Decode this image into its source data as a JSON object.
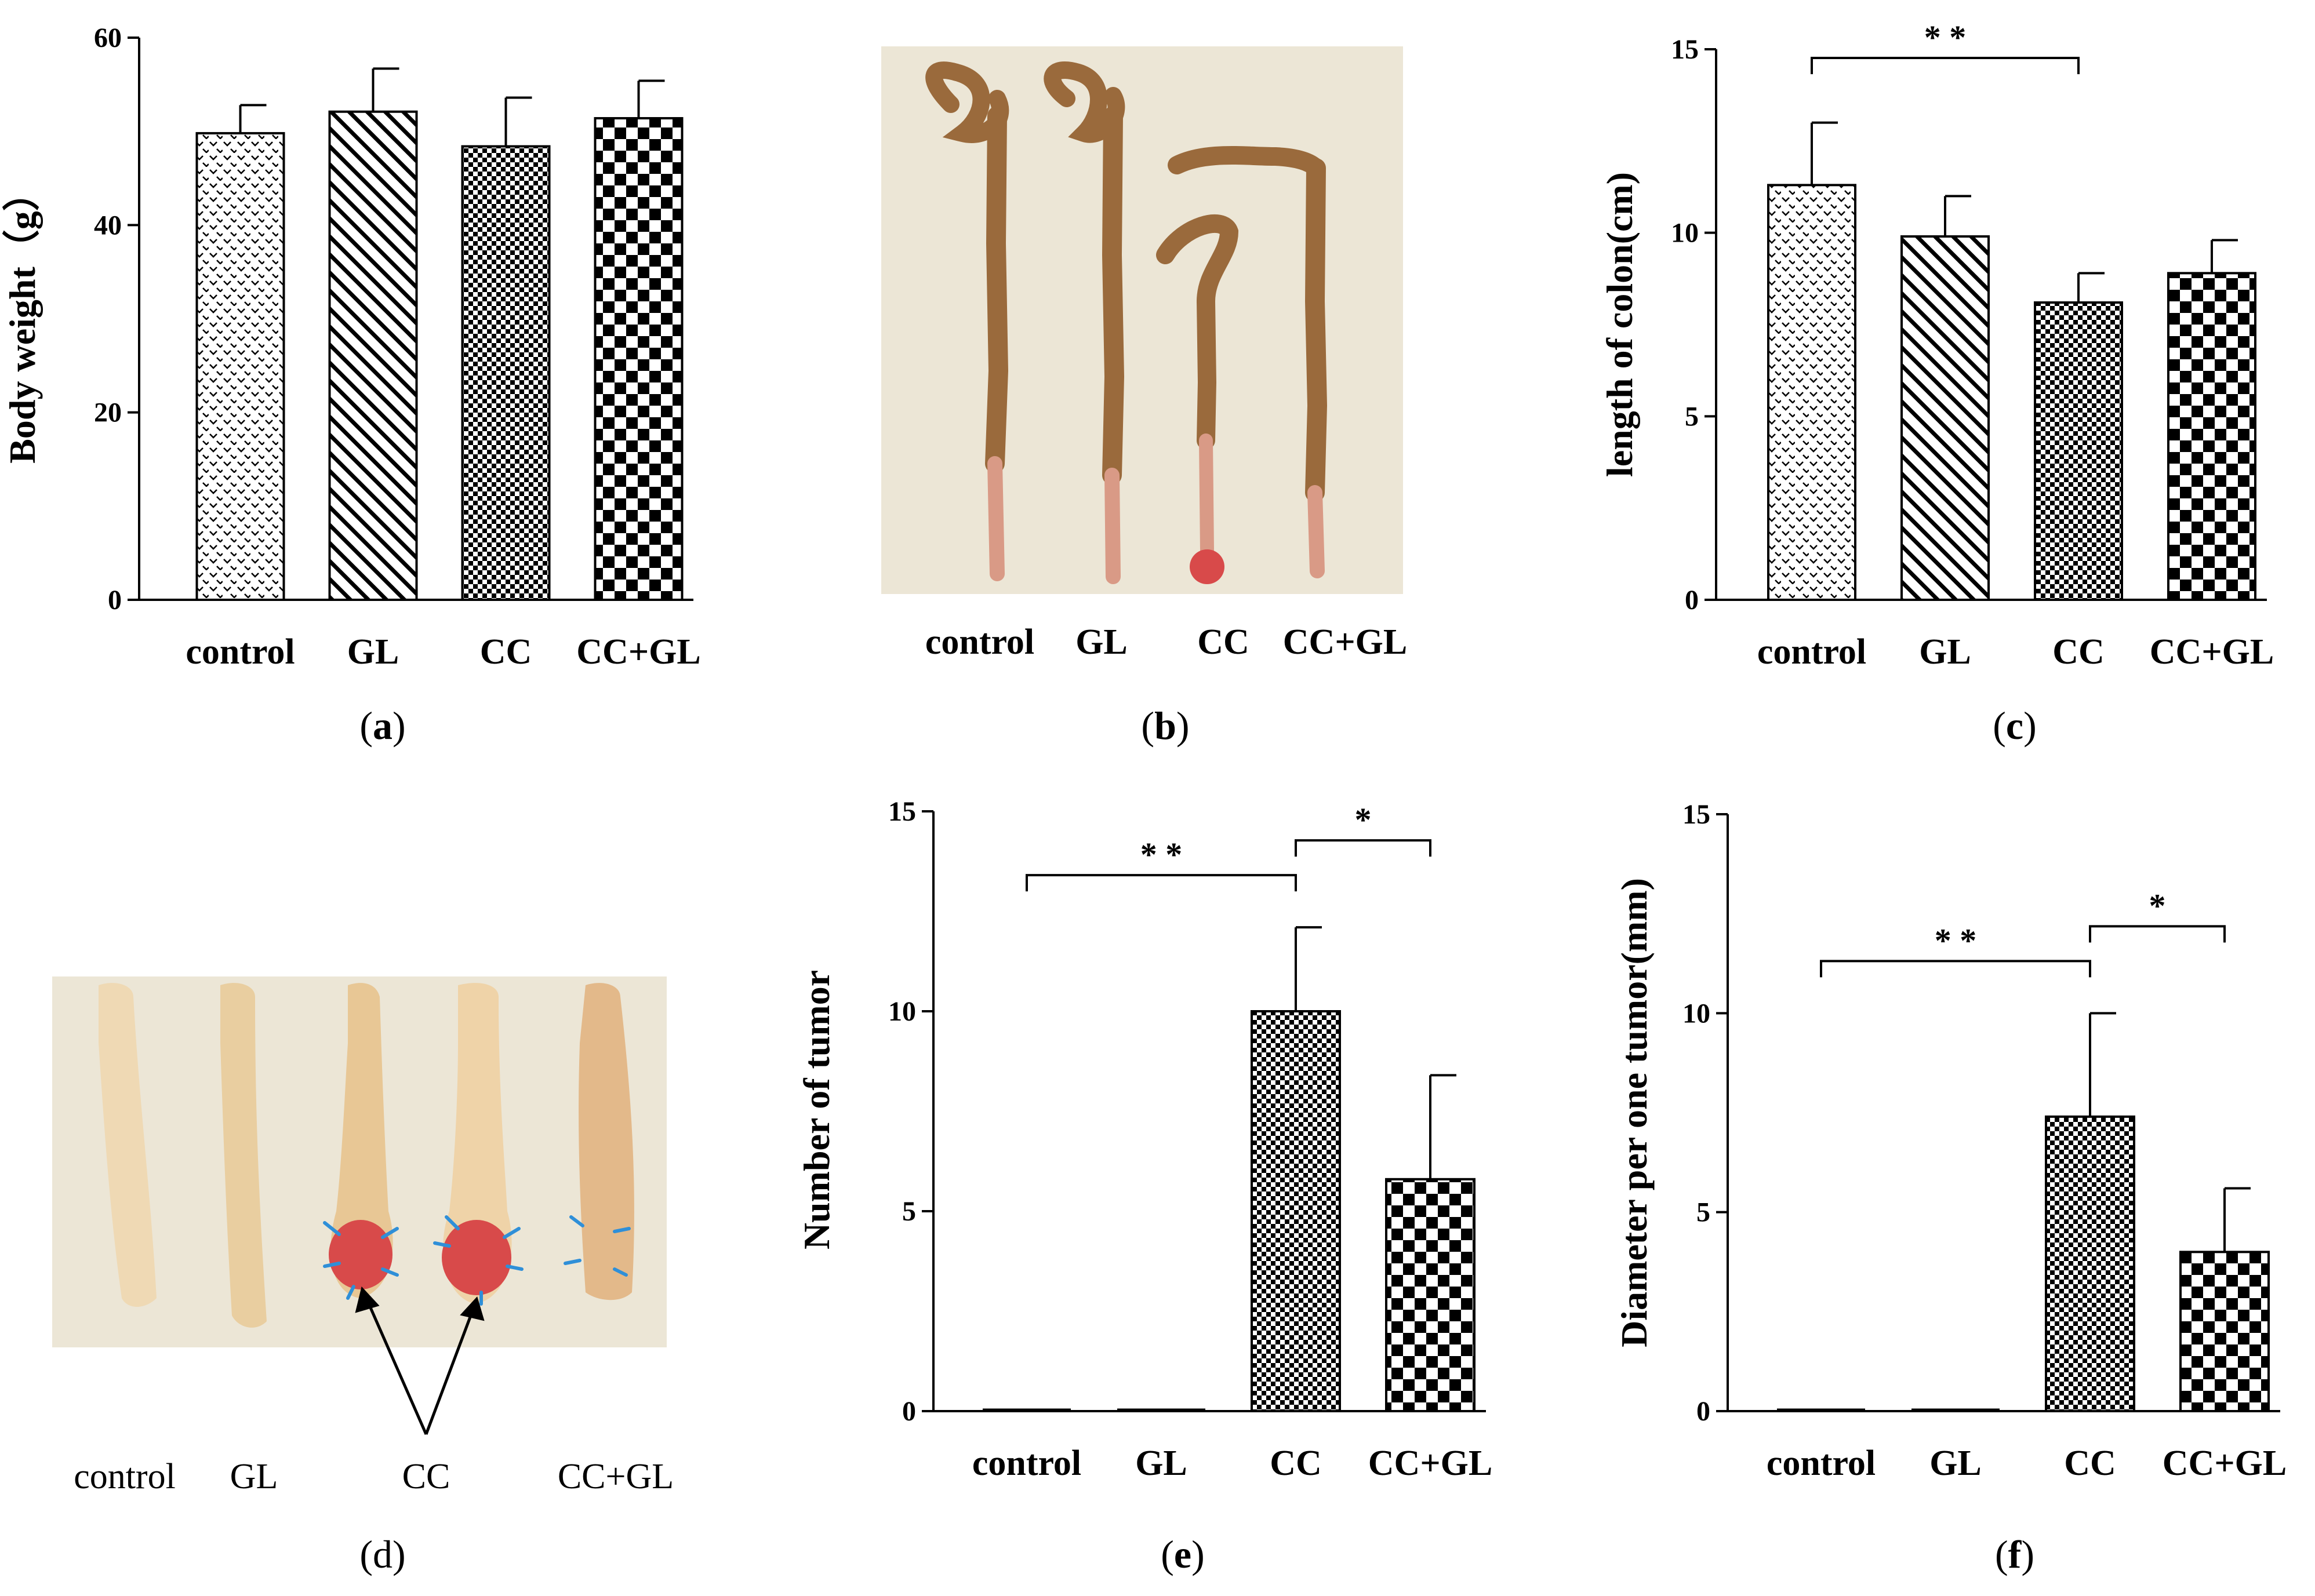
{
  "colors": {
    "ink": "#000000",
    "photo_background": "#ece6d6",
    "colon_tissue": "#d99a86",
    "colon_content": "#9a6a3c",
    "tumor": "#d84a4a",
    "tumor_arrow": "#2f8fd8"
  },
  "panels": [
    {
      "letter": "a",
      "open": "(",
      "close": ")"
    },
    {
      "letter": "b",
      "open": "(",
      "close": ")"
    },
    {
      "letter": "c",
      "open": "(",
      "close": ")"
    },
    {
      "letter": "d",
      "open": "(",
      "close": ")"
    },
    {
      "letter": "e",
      "open": "(",
      "close": ")"
    },
    {
      "letter": "f",
      "open": "(",
      "close": ")"
    }
  ],
  "photo_b": {
    "categories": [
      "control",
      "GL",
      "CC",
      "CC+GL"
    ]
  },
  "photo_d": {
    "categories": [
      "control",
      "GL",
      "CC",
      "CC+GL"
    ]
  },
  "chart_data": [
    {
      "panel": "a",
      "type": "bar",
      "categories": [
        "control",
        "GL",
        "CC",
        "CC+GL"
      ],
      "values": [
        49.8,
        52.1,
        48.4,
        51.4
      ],
      "errors": [
        3.0,
        4.6,
        5.2,
        4.0
      ],
      "patterns": [
        "chevron",
        "diagonal",
        "fine-check",
        "checker"
      ],
      "ylabel": "Body weight（g）",
      "ylim": [
        0,
        60
      ],
      "yticks": [
        0,
        20,
        40,
        60
      ],
      "significance": []
    },
    {
      "panel": "c",
      "type": "bar",
      "categories": [
        "control",
        "GL",
        "CC",
        "CC+GL"
      ],
      "values": [
        11.3,
        9.9,
        8.1,
        8.9
      ],
      "errors": [
        1.7,
        1.1,
        0.8,
        0.9
      ],
      "patterns": [
        "chevron",
        "diagonal",
        "fine-check",
        "checker"
      ],
      "ylabel": "length of colon(cm)",
      "ylim": [
        0,
        15
      ],
      "yticks": [
        0,
        5,
        10,
        15
      ],
      "significance": [
        {
          "from": 0,
          "to": 2,
          "label": "* *"
        }
      ]
    },
    {
      "panel": "e",
      "type": "bar",
      "categories": [
        "control",
        "GL",
        "CC",
        "CC+GL"
      ],
      "values": [
        0,
        0,
        10.0,
        5.8
      ],
      "errors": [
        0,
        0,
        2.1,
        2.6
      ],
      "patterns": [
        "chevron",
        "diagonal",
        "fine-check",
        "checker"
      ],
      "ylabel": "Number of tumor",
      "ylim": [
        0,
        15
      ],
      "yticks": [
        0,
        5,
        10,
        15
      ],
      "significance": [
        {
          "from": 0,
          "to": 2,
          "label": "* *"
        },
        {
          "from": 2,
          "to": 3,
          "label": "*"
        }
      ]
    },
    {
      "panel": "f",
      "type": "bar",
      "categories": [
        "control",
        "GL",
        "CC",
        "CC+GL"
      ],
      "values": [
        0,
        0,
        7.4,
        4.0
      ],
      "errors": [
        0,
        0,
        2.6,
        1.6
      ],
      "patterns": [
        "chevron",
        "diagonal",
        "fine-check",
        "checker"
      ],
      "ylabel": "Diameter per one tumor(mm)",
      "ylim": [
        0,
        15
      ],
      "yticks": [
        0,
        5,
        10,
        15
      ],
      "significance": [
        {
          "from": 0,
          "to": 2,
          "label": "* *"
        },
        {
          "from": 2,
          "to": 3,
          "label": "*"
        }
      ]
    }
  ]
}
